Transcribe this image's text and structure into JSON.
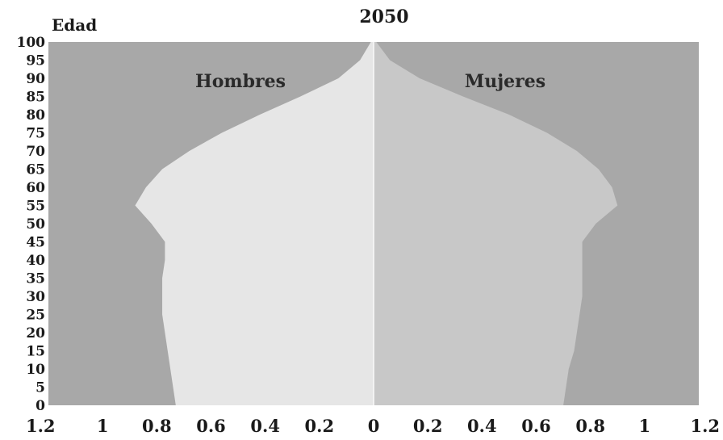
{
  "chart_data": {
    "type": "area",
    "subtype": "population-pyramid",
    "title": "2050",
    "ylabel": "Edad",
    "xlabel": "",
    "xlim": [
      -1.2,
      1.2
    ],
    "ylim": [
      0,
      100
    ],
    "x_tick_labels": [
      "1.2",
      "1",
      "0.8",
      "0.6",
      "0.4",
      "0.2",
      "0",
      "0.2",
      "0.4",
      "0.6",
      "0.8",
      "1",
      "1.2"
    ],
    "y_tick_labels": [
      "0",
      "5",
      "10",
      "15",
      "20",
      "25",
      "30",
      "35",
      "40",
      "45",
      "50",
      "55",
      "60",
      "65",
      "70",
      "75",
      "80",
      "85",
      "90",
      "95",
      "100"
    ],
    "ages": [
      0,
      5,
      10,
      15,
      20,
      25,
      30,
      35,
      40,
      45,
      50,
      55,
      60,
      65,
      70,
      75,
      80,
      85,
      90,
      95,
      100
    ],
    "series": [
      {
        "name": "Hombres",
        "side": "left",
        "values": [
          0.73,
          0.74,
          0.75,
          0.76,
          0.77,
          0.78,
          0.78,
          0.78,
          0.77,
          0.77,
          0.82,
          0.88,
          0.84,
          0.78,
          0.68,
          0.56,
          0.42,
          0.27,
          0.13,
          0.05,
          0.01
        ],
        "color": "#e6e6e6"
      },
      {
        "name": "Mujeres",
        "side": "right",
        "values": [
          0.7,
          0.71,
          0.72,
          0.74,
          0.75,
          0.76,
          0.77,
          0.77,
          0.77,
          0.77,
          0.82,
          0.9,
          0.88,
          0.83,
          0.75,
          0.64,
          0.5,
          0.33,
          0.17,
          0.06,
          0.01
        ],
        "color": "#c8c8c8"
      }
    ],
    "grid": false,
    "colors": {
      "plot_background": "#a8a8a8",
      "center_line": "#f2f2f2"
    }
  }
}
